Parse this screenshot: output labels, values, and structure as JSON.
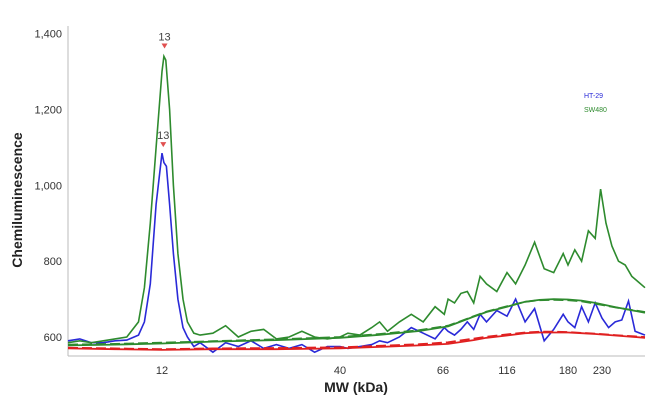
{
  "chart_data": {
    "type": "line",
    "title": "",
    "xlabel": "MW (kDa)",
    "ylabel": "Chemiluminescence",
    "x_ticks": [
      "12",
      "40",
      "66",
      "116",
      "180",
      "230"
    ],
    "y_ticks": [
      "600",
      "800",
      "1,000",
      "1,200",
      "1,400"
    ],
    "ylim": [
      550,
      1420
    ],
    "grid": false,
    "legend_position": "top-right",
    "colors": {
      "hct": "#2a2ad8",
      "sw": "#2e8b2e",
      "baseline": "#e02020",
      "marker": "#e05050"
    },
    "peak_markers": [
      {
        "series": "SW480",
        "label": "13",
        "x": 12.4,
        "y": 1350
      },
      {
        "series": "HT-29",
        "label": "13",
        "x": 12.2,
        "y": 1090
      }
    ],
    "series": [
      {
        "name": "HT-29",
        "color": "#2a2ad8",
        "points": [
          [
            4,
            590
          ],
          [
            5,
            595
          ],
          [
            6,
            585
          ],
          [
            7,
            585
          ],
          [
            8,
            590
          ],
          [
            9,
            592
          ],
          [
            10,
            605
          ],
          [
            10.5,
            640
          ],
          [
            11,
            740
          ],
          [
            11.5,
            950
          ],
          [
            12,
            1085
          ],
          [
            12.3,
            1060
          ],
          [
            12.7,
            1050
          ],
          [
            13.2,
            950
          ],
          [
            13.8,
            820
          ],
          [
            14.5,
            700
          ],
          [
            15.3,
            625
          ],
          [
            16,
            600
          ],
          [
            17,
            575
          ],
          [
            18,
            585
          ],
          [
            20,
            560
          ],
          [
            22,
            585
          ],
          [
            24,
            575
          ],
          [
            26,
            590
          ],
          [
            28,
            570
          ],
          [
            30,
            580
          ],
          [
            32,
            570
          ],
          [
            34,
            580
          ],
          [
            36,
            560
          ],
          [
            38,
            575
          ],
          [
            40,
            575
          ],
          [
            42,
            570
          ],
          [
            45,
            575
          ],
          [
            48,
            580
          ],
          [
            50,
            590
          ],
          [
            52,
            585
          ],
          [
            55,
            600
          ],
          [
            58,
            625
          ],
          [
            61,
            610
          ],
          [
            64,
            595
          ],
          [
            67,
            625
          ],
          [
            70,
            615
          ],
          [
            75,
            605
          ],
          [
            80,
            620
          ],
          [
            85,
            640
          ],
          [
            90,
            620
          ],
          [
            95,
            660
          ],
          [
            100,
            640
          ],
          [
            108,
            670
          ],
          [
            116,
            655
          ],
          [
            125,
            700
          ],
          [
            135,
            640
          ],
          [
            145,
            675
          ],
          [
            155,
            590
          ],
          [
            165,
            620
          ],
          [
            175,
            660
          ],
          [
            180,
            640
          ],
          [
            190,
            625
          ],
          [
            200,
            680
          ],
          [
            210,
            640
          ],
          [
            220,
            690
          ],
          [
            230,
            650
          ],
          [
            240,
            625
          ],
          [
            250,
            640
          ],
          [
            260,
            645
          ],
          [
            270,
            695
          ],
          [
            280,
            615
          ],
          [
            295,
            605
          ]
        ]
      },
      {
        "name": "SW480",
        "color": "#2e8b2e",
        "points": [
          [
            4,
            585
          ],
          [
            5,
            590
          ],
          [
            6,
            585
          ],
          [
            7,
            590
          ],
          [
            8,
            595
          ],
          [
            9,
            600
          ],
          [
            10,
            640
          ],
          [
            10.5,
            730
          ],
          [
            11,
            900
          ],
          [
            11.5,
            1100
          ],
          [
            12,
            1300
          ],
          [
            12.3,
            1340
          ],
          [
            12.6,
            1330
          ],
          [
            13.2,
            1200
          ],
          [
            13.8,
            1000
          ],
          [
            14.5,
            820
          ],
          [
            15.3,
            700
          ],
          [
            16,
            640
          ],
          [
            17,
            610
          ],
          [
            18,
            605
          ],
          [
            20,
            610
          ],
          [
            22,
            630
          ],
          [
            24,
            600
          ],
          [
            26,
            615
          ],
          [
            28,
            620
          ],
          [
            30,
            595
          ],
          [
            32,
            600
          ],
          [
            34,
            615
          ],
          [
            36,
            600
          ],
          [
            38,
            595
          ],
          [
            40,
            600
          ],
          [
            42,
            610
          ],
          [
            45,
            605
          ],
          [
            48,
            625
          ],
          [
            50,
            640
          ],
          [
            52,
            615
          ],
          [
            55,
            640
          ],
          [
            58,
            660
          ],
          [
            61,
            640
          ],
          [
            64,
            680
          ],
          [
            67,
            660
          ],
          [
            70,
            700
          ],
          [
            75,
            690
          ],
          [
            80,
            715
          ],
          [
            85,
            720
          ],
          [
            90,
            690
          ],
          [
            95,
            760
          ],
          [
            100,
            740
          ],
          [
            108,
            720
          ],
          [
            116,
            770
          ],
          [
            125,
            740
          ],
          [
            135,
            790
          ],
          [
            145,
            850
          ],
          [
            155,
            780
          ],
          [
            165,
            770
          ],
          [
            175,
            820
          ],
          [
            180,
            790
          ],
          [
            190,
            830
          ],
          [
            200,
            800
          ],
          [
            210,
            880
          ],
          [
            220,
            860
          ],
          [
            228,
            990
          ],
          [
            236,
            900
          ],
          [
            245,
            840
          ],
          [
            255,
            800
          ],
          [
            265,
            790
          ],
          [
            275,
            760
          ],
          [
            285,
            745
          ],
          [
            295,
            730
          ]
        ]
      },
      {
        "name": "HT-29 baseline",
        "color": "#e02020",
        "style": "solid",
        "points": [
          [
            4,
            570
          ],
          [
            8,
            568
          ],
          [
            12,
            566
          ],
          [
            20,
            568
          ],
          [
            30,
            568
          ],
          [
            40,
            570
          ],
          [
            50,
            574
          ],
          [
            60,
            578
          ],
          [
            70,
            582
          ],
          [
            80,
            587
          ],
          [
            90,
            592
          ],
          [
            100,
            598
          ],
          [
            116,
            604
          ],
          [
            135,
            610
          ],
          [
            150,
            612
          ],
          [
            165,
            612
          ],
          [
            180,
            612
          ],
          [
            200,
            610
          ],
          [
            220,
            608
          ],
          [
            250,
            604
          ],
          [
            295,
            598
          ]
        ]
      },
      {
        "name": "HT-29 baseline fit",
        "color": "#e02020",
        "style": "dashed",
        "points": [
          [
            4,
            572
          ],
          [
            8,
            570
          ],
          [
            12,
            568
          ],
          [
            20,
            570
          ],
          [
            30,
            571
          ],
          [
            40,
            573
          ],
          [
            50,
            577
          ],
          [
            60,
            581
          ],
          [
            70,
            586
          ],
          [
            80,
            591
          ],
          [
            90,
            596
          ],
          [
            100,
            601
          ],
          [
            116,
            607
          ],
          [
            135,
            612
          ],
          [
            150,
            614
          ],
          [
            165,
            614
          ],
          [
            180,
            613
          ],
          [
            200,
            611
          ],
          [
            220,
            609
          ],
          [
            250,
            605
          ],
          [
            295,
            600
          ]
        ]
      },
      {
        "name": "SW480 baseline",
        "color": "#2e8b2e",
        "style": "solid",
        "points": [
          [
            4,
            578
          ],
          [
            8,
            580
          ],
          [
            12,
            583
          ],
          [
            20,
            588
          ],
          [
            30,
            592
          ],
          [
            40,
            598
          ],
          [
            50,
            606
          ],
          [
            60,
            616
          ],
          [
            70,
            628
          ],
          [
            80,
            641
          ],
          [
            90,
            654
          ],
          [
            100,
            666
          ],
          [
            116,
            680
          ],
          [
            135,
            693
          ],
          [
            150,
            698
          ],
          [
            165,
            700
          ],
          [
            180,
            699
          ],
          [
            200,
            696
          ],
          [
            220,
            690
          ],
          [
            250,
            679
          ],
          [
            295,
            664
          ]
        ]
      },
      {
        "name": "SW480 baseline fit",
        "color": "#2e8b2e",
        "style": "dashed",
        "points": [
          [
            4,
            580
          ],
          [
            8,
            582
          ],
          [
            12,
            585
          ],
          [
            20,
            589
          ],
          [
            30,
            594
          ],
          [
            40,
            600
          ],
          [
            50,
            608
          ],
          [
            60,
            618
          ],
          [
            70,
            630
          ],
          [
            80,
            642
          ],
          [
            90,
            655
          ],
          [
            100,
            667
          ],
          [
            116,
            681
          ],
          [
            135,
            693
          ],
          [
            150,
            697
          ],
          [
            165,
            698
          ],
          [
            180,
            697
          ],
          [
            200,
            694
          ],
          [
            220,
            688
          ],
          [
            250,
            678
          ],
          [
            295,
            666
          ]
        ]
      }
    ]
  }
}
